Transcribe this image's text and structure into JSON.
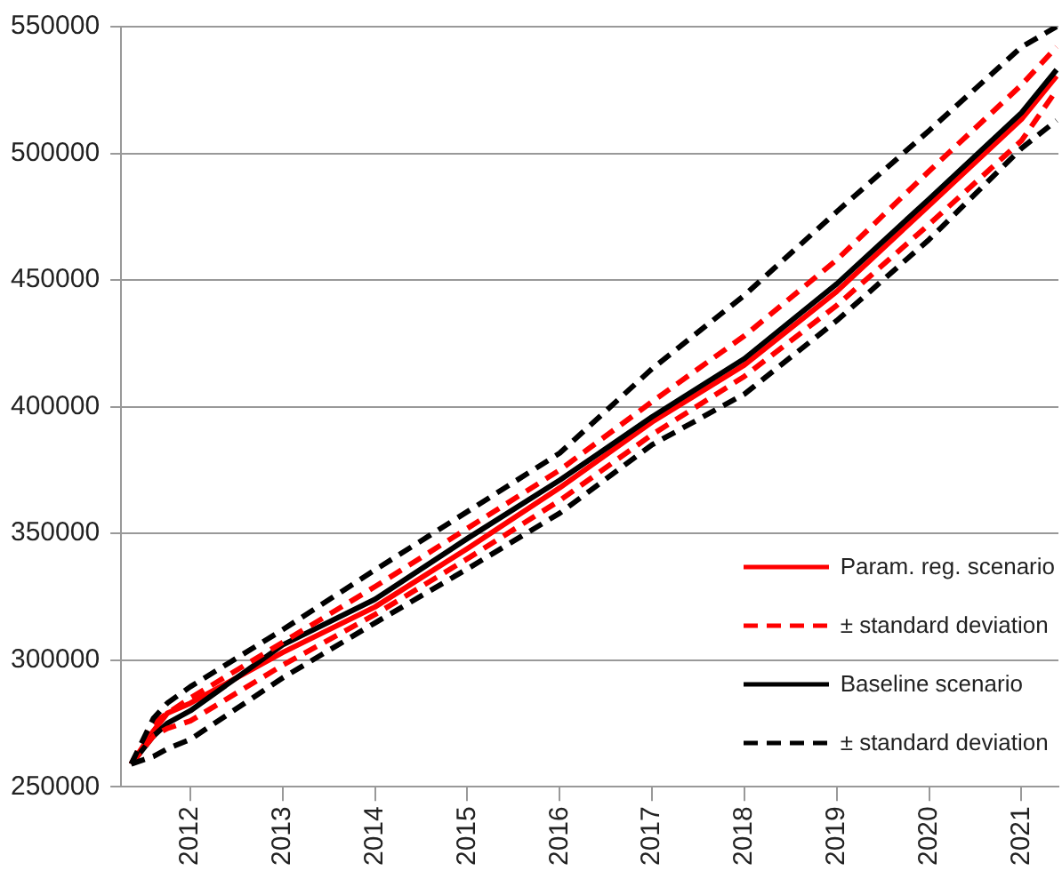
{
  "chart_data": {
    "type": "line",
    "x": [
      2011.36,
      2011.6,
      2011.75,
      2012,
      2013,
      2014,
      2015,
      2016,
      2017,
      2018,
      2019,
      2020,
      2021,
      2021.38
    ],
    "series": [
      {
        "name": "Param. reg. scenario",
        "color": "#ff0000",
        "line_style": "solid",
        "values": [
          259000,
          272000,
          279000,
          283000,
          303000,
          321000,
          344000,
          368000,
          394000,
          416500,
          445500,
          479500,
          513500,
          530500
        ]
      },
      {
        "name": "± standard deviation",
        "color": "#ff0000",
        "line_style": "dashed",
        "values": [
          259000,
          275000,
          279000,
          285000,
          307000,
          329000,
          352000,
          375000,
          402000,
          428000,
          458000,
          493000,
          527000,
          542000
        ]
      },
      {
        "color": "#ff0000",
        "line_style": "dashed",
        "values": [
          259000,
          270000,
          273000,
          276000,
          298000,
          318000,
          340000,
          363000,
          389000,
          412000,
          440000,
          472000,
          505000,
          525000
        ]
      },
      {
        "name": "Baseline scenario",
        "color": "#000000",
        "line_style": "solid",
        "values": [
          259000,
          270000,
          275000,
          280000,
          306000,
          324000,
          348000,
          371000,
          396000,
          419000,
          448500,
          482000,
          516000,
          533000
        ]
      },
      {
        "name": "± standard deviation",
        "color": "#000000",
        "line_style": "dashed",
        "values": [
          259000,
          277000,
          283000,
          289500,
          312000,
          335600,
          358600,
          381700,
          415000,
          444000,
          477000,
          509000,
          542000,
          550000
        ]
      },
      {
        "color": "#000000",
        "line_style": "dashed",
        "values": [
          259000,
          262000,
          265000,
          268700,
          293000,
          314700,
          336000,
          358000,
          385000,
          405000,
          434000,
          466000,
          502000,
          513000
        ]
      }
    ],
    "xlim": [
      2011.25,
      2021.4
    ],
    "xticks": [
      2012,
      2013,
      2014,
      2015,
      2016,
      2017,
      2018,
      2019,
      2020,
      2021
    ],
    "ylim": [
      250000,
      550000
    ],
    "yticks": [
      250000,
      300000,
      350000,
      400000,
      450000,
      500000,
      550000
    ],
    "grid": "y",
    "legend": "bottom right",
    "marker": "none"
  }
}
